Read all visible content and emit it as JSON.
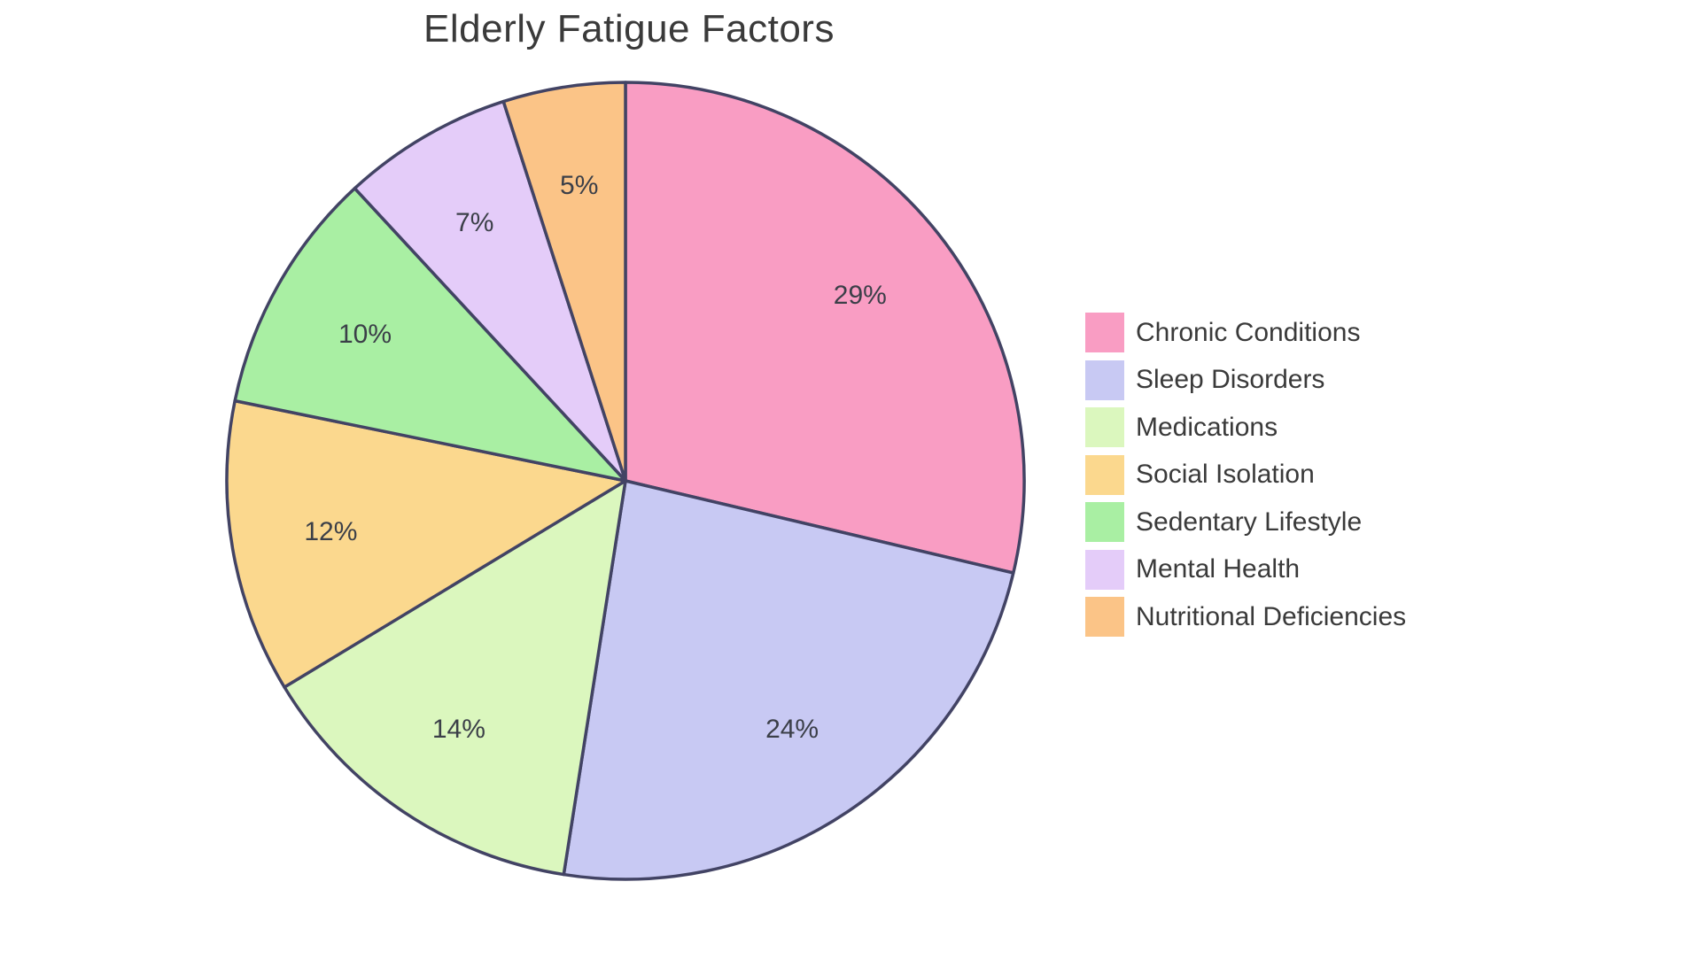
{
  "chart_data": {
    "type": "pie",
    "title": "Elderly Fatigue Factors",
    "categories": [
      "Chronic Conditions",
      "Sleep Disorders",
      "Medications",
      "Social Isolation",
      "Sedentary Lifestyle",
      "Mental Health",
      "Nutritional Deficiencies"
    ],
    "values": [
      29,
      24,
      14,
      12,
      10,
      7,
      5
    ],
    "percent_labels": [
      "29%",
      "24%",
      "14%",
      "12%",
      "10%",
      "7%",
      "5%"
    ],
    "slice_colors": [
      "#F99DC3",
      "#C8C9F3",
      "#DBF7BE",
      "#FBD88E",
      "#A9EFA3",
      "#E4CCF9",
      "#FBC487"
    ],
    "slice_border_color": "#424364",
    "title_color": "#3A3A3A",
    "percent_label_color": "#3B3F48",
    "legend_text_color": "#3A3A3A",
    "background_color": "#FFFFFF",
    "legend_position": "right",
    "start_angle": "top",
    "direction": "clockwise"
  }
}
